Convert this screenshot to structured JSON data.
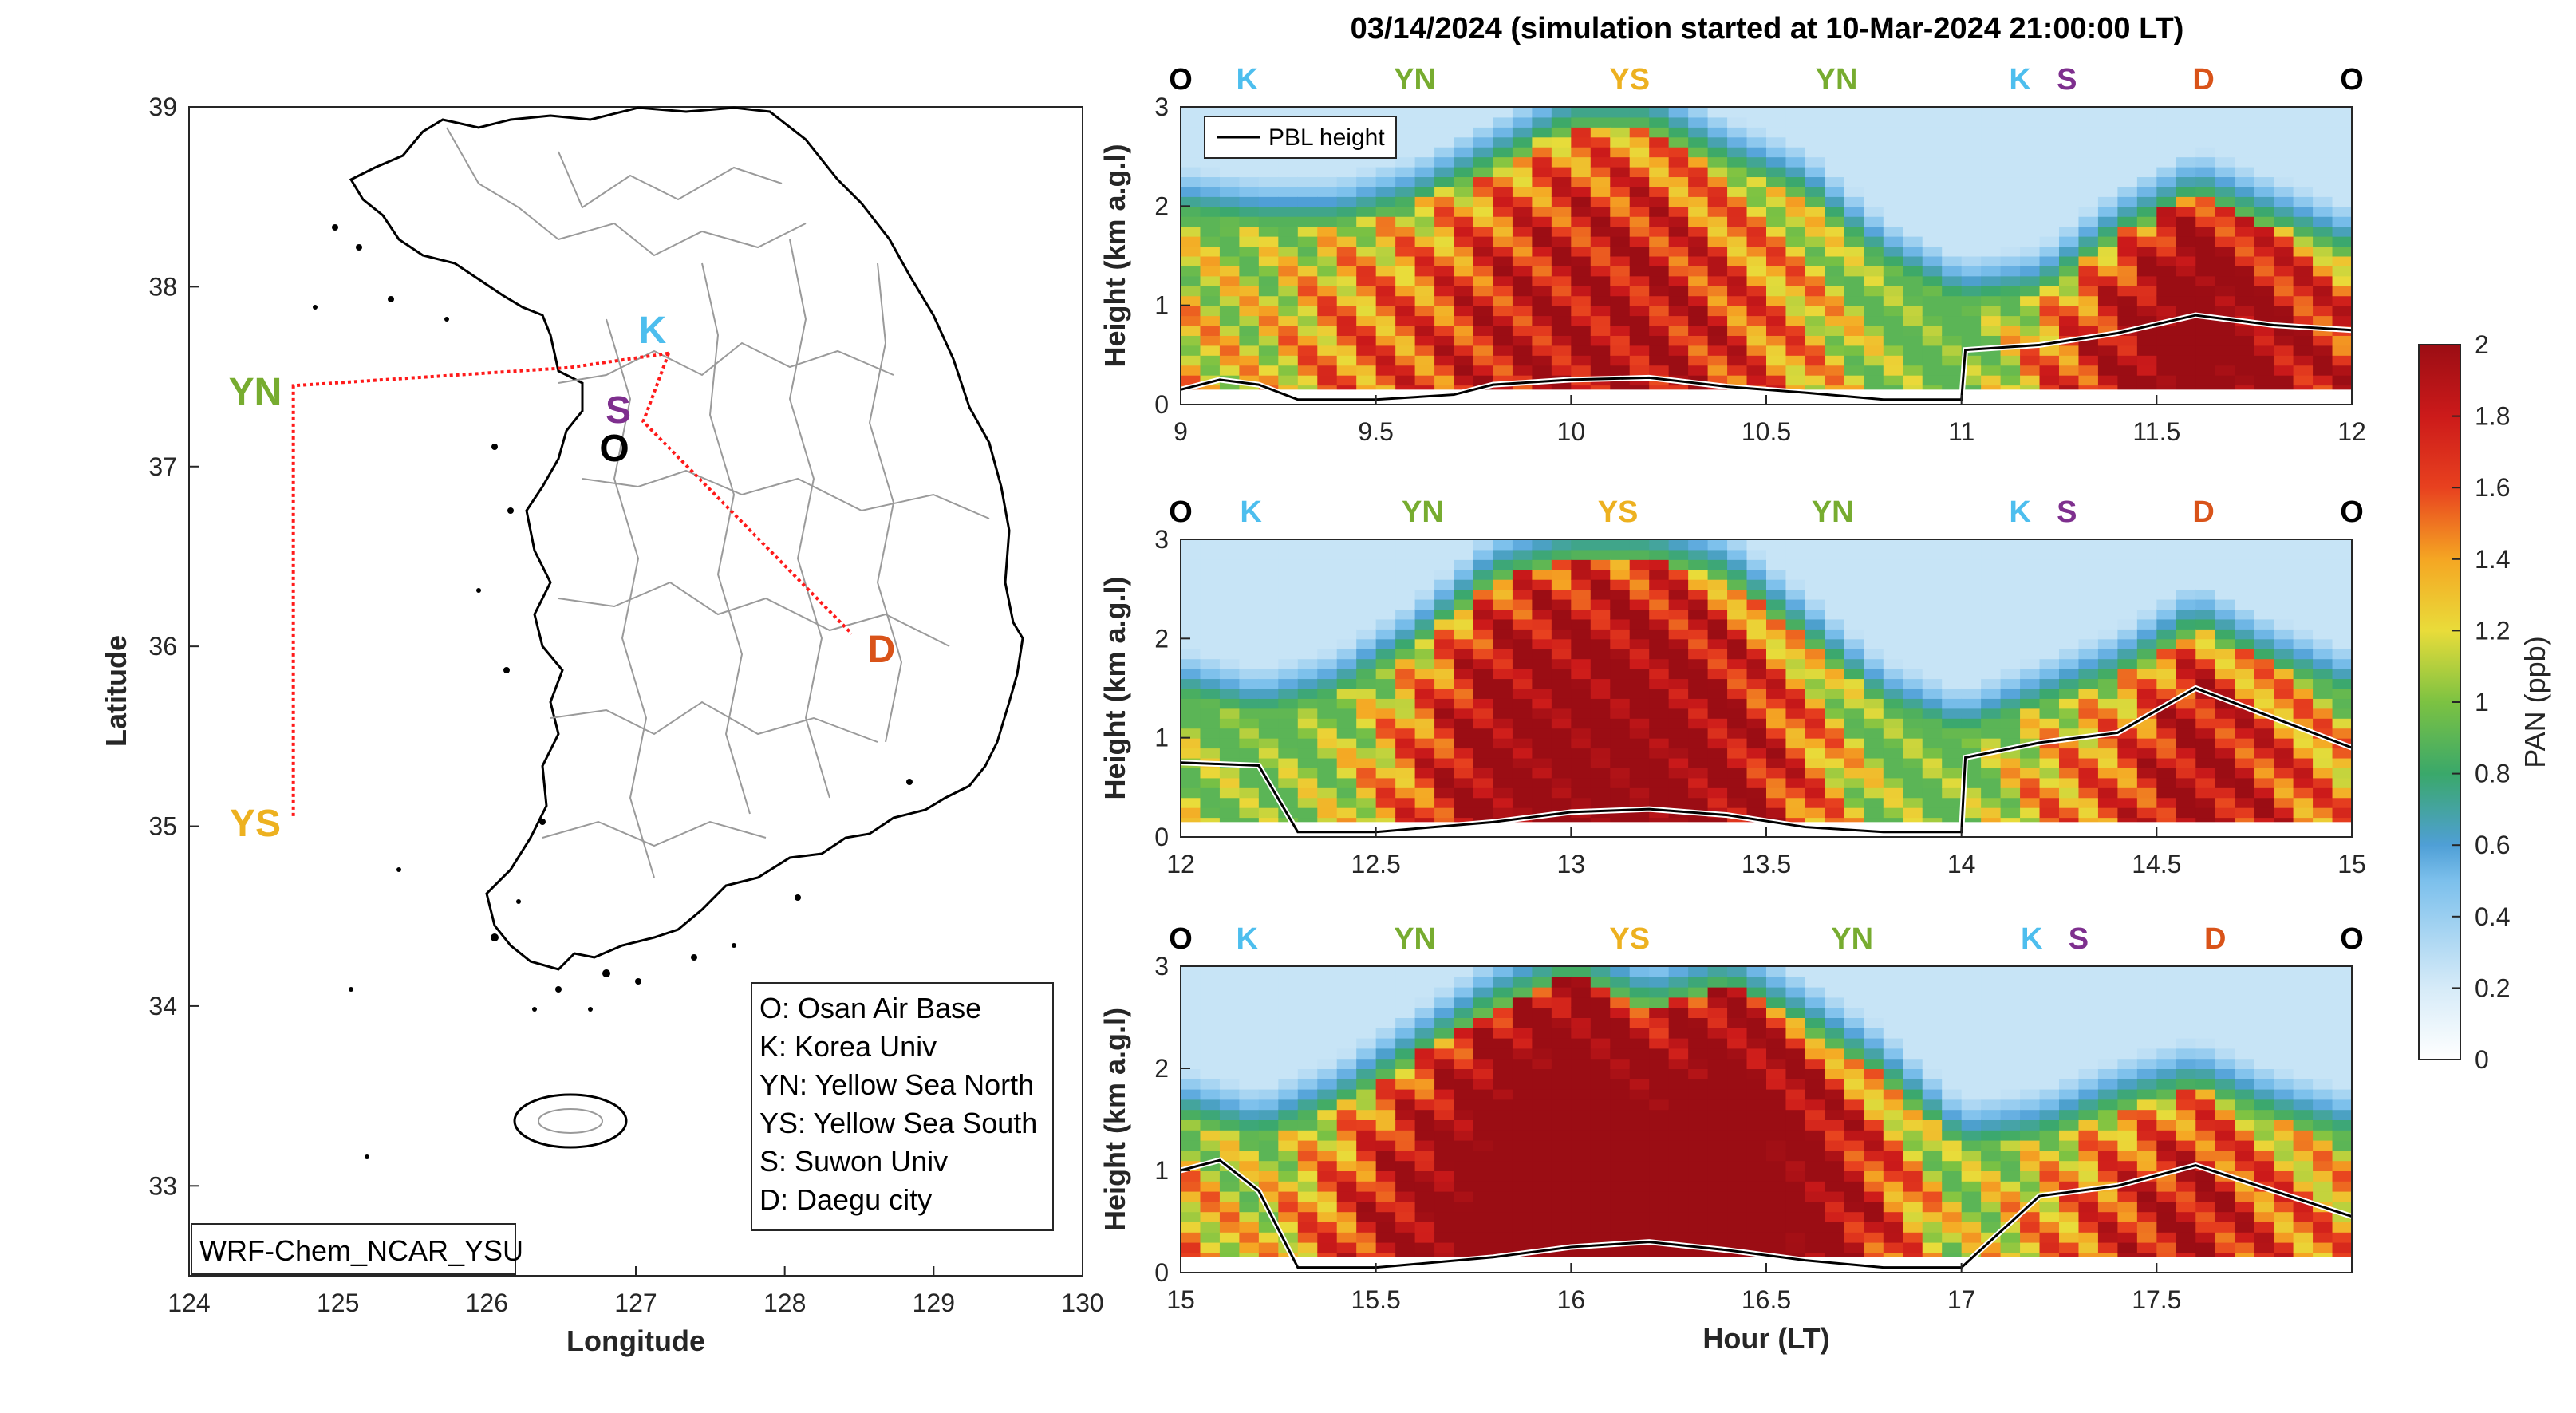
{
  "title": "03/14/2024 (simulation started at 10-Mar-2024 21:00:00 LT)",
  "colors": {
    "O": "#000000",
    "K": "#4DBEEE",
    "YN": "#77AC30",
    "YS": "#EDB120",
    "S": "#7E2F8E",
    "D": "#D95319"
  },
  "map": {
    "xlabel": "Longitude",
    "ylabel": "Latitude",
    "xticks": [
      "124",
      "125",
      "126",
      "127",
      "128",
      "129",
      "130"
    ],
    "yticks": [
      "33",
      "34",
      "35",
      "36",
      "37",
      "38",
      "39"
    ],
    "model_label": "WRF-Chem_NCAR_YSU",
    "legend": [
      "O: Osan Air Base",
      "K: Korea Univ",
      "YN: Yellow Sea North",
      "YS: Yellow Sea South",
      "S: Suwon Univ",
      "D: Daegu city"
    ],
    "sites": [
      {
        "code": "K",
        "lon": 127.15,
        "lat": 37.6
      },
      {
        "code": "S",
        "lon": 126.9,
        "lat": 37.3
      },
      {
        "code": "O",
        "lon": 126.85,
        "lat": 37.1
      },
      {
        "code": "YN",
        "lon": 124.3,
        "lat": 37.4
      },
      {
        "code": "YS",
        "lon": 124.3,
        "lat": 35.0
      },
      {
        "code": "D",
        "lon": 128.55,
        "lat": 35.95
      }
    ],
    "flight_track": [
      [
        127.22,
        37.63
      ],
      [
        126.55,
        37.55
      ],
      [
        124.7,
        37.45
      ],
      [
        124.7,
        35.05
      ]
    ],
    "flight_track2": [
      [
        127.22,
        37.63
      ],
      [
        127.05,
        37.25
      ],
      [
        128.45,
        36.07
      ]
    ]
  },
  "route_labels": [
    "O",
    "K",
    "YN",
    "YS",
    "YN",
    "K",
    "S",
    "D",
    "O"
  ],
  "colorbar": {
    "label": "PAN (ppb)",
    "ticks": [
      "0",
      "0.2",
      "0.4",
      "0.6",
      "0.8",
      "1",
      "1.2",
      "1.4",
      "1.6",
      "1.8",
      "2"
    ]
  },
  "chart_data": [
    {
      "type": "heatmap",
      "xlim": [
        9,
        12
      ],
      "ylim": [
        0,
        3
      ],
      "xticks": [
        "9",
        "9.5",
        "10",
        "10.5",
        "11",
        "11.5",
        "12"
      ],
      "yticks": [
        "0",
        "1",
        "2",
        "3"
      ],
      "ylabel": "Height (km a.g.l)",
      "xlabel": "",
      "legend": "PBL height",
      "route_positions": [
        9.0,
        9.17,
        9.6,
        10.15,
        10.68,
        11.15,
        11.27,
        11.62,
        12.0
      ],
      "pbl": {
        "x": [
          9.0,
          9.1,
          9.2,
          9.3,
          9.5,
          9.7,
          9.8,
          10.0,
          10.2,
          10.4,
          10.6,
          10.8,
          11.0,
          11.01,
          11.2,
          11.4,
          11.6,
          11.8,
          12.0
        ],
        "y": [
          0.15,
          0.25,
          0.2,
          0.05,
          0.05,
          0.1,
          0.2,
          0.25,
          0.27,
          0.18,
          0.12,
          0.05,
          0.05,
          0.55,
          0.6,
          0.72,
          0.9,
          0.8,
          0.75
        ]
      },
      "columns": [
        {
          "x": 9.0,
          "core": 0.9,
          "top": 1.9
        },
        {
          "x": 9.2,
          "core": 0.8,
          "top": 1.8
        },
        {
          "x": 9.4,
          "core": 1.1,
          "top": 1.8
        },
        {
          "x": 9.6,
          "core": 1.2,
          "top": 2.0
        },
        {
          "x": 9.8,
          "core": 1.4,
          "top": 2.4
        },
        {
          "x": 10.0,
          "core": 1.5,
          "top": 2.8
        },
        {
          "x": 10.2,
          "core": 1.5,
          "top": 2.8
        },
        {
          "x": 10.4,
          "core": 1.3,
          "top": 2.4
        },
        {
          "x": 10.6,
          "core": 1.0,
          "top": 2.1
        },
        {
          "x": 10.8,
          "core": 0.6,
          "top": 1.4
        },
        {
          "x": 11.0,
          "core": 0.4,
          "top": 1.0
        },
        {
          "x": 11.2,
          "core": 1.1,
          "top": 1.1
        },
        {
          "x": 11.4,
          "core": 1.5,
          "top": 1.7
        },
        {
          "x": 11.6,
          "core": 2.0,
          "top": 2.1
        },
        {
          "x": 11.8,
          "core": 1.6,
          "top": 1.8
        },
        {
          "x": 12.0,
          "core": 1.3,
          "top": 1.5
        }
      ]
    },
    {
      "type": "heatmap",
      "xlim": [
        12,
        15
      ],
      "ylim": [
        0,
        3
      ],
      "xticks": [
        "12",
        "12.5",
        "13",
        "13.5",
        "14",
        "14.5",
        "15"
      ],
      "yticks": [
        "0",
        "1",
        "2",
        "3"
      ],
      "ylabel": "Height (km a.g.l)",
      "xlabel": "",
      "route_positions": [
        12.0,
        12.18,
        12.62,
        13.12,
        13.67,
        14.15,
        14.27,
        14.62,
        15.0
      ],
      "pbl": {
        "x": [
          12.0,
          12.2,
          12.3,
          12.5,
          12.8,
          13.0,
          13.2,
          13.4,
          13.6,
          13.8,
          14.0,
          14.01,
          14.2,
          14.4,
          14.6,
          14.8,
          15.0
        ],
        "y": [
          0.75,
          0.72,
          0.05,
          0.05,
          0.15,
          0.25,
          0.28,
          0.22,
          0.1,
          0.05,
          0.05,
          0.8,
          0.95,
          1.05,
          1.5,
          1.2,
          0.9
        ]
      },
      "columns": [
        {
          "x": 12.0,
          "core": 0.7,
          "top": 1.4
        },
        {
          "x": 12.2,
          "core": 0.5,
          "top": 1.2
        },
        {
          "x": 12.4,
          "core": 0.7,
          "top": 1.4
        },
        {
          "x": 12.6,
          "core": 1.2,
          "top": 1.9
        },
        {
          "x": 12.8,
          "core": 1.7,
          "top": 2.6
        },
        {
          "x": 13.0,
          "core": 1.8,
          "top": 2.8
        },
        {
          "x": 13.2,
          "core": 1.8,
          "top": 2.8
        },
        {
          "x": 13.4,
          "core": 1.6,
          "top": 2.6
        },
        {
          "x": 13.6,
          "core": 1.2,
          "top": 2.0
        },
        {
          "x": 13.8,
          "core": 0.6,
          "top": 1.3
        },
        {
          "x": 14.0,
          "core": 0.5,
          "top": 1.0
        },
        {
          "x": 14.2,
          "core": 1.0,
          "top": 1.3
        },
        {
          "x": 14.4,
          "core": 1.2,
          "top": 1.6
        },
        {
          "x": 14.6,
          "core": 1.6,
          "top": 2.1
        },
        {
          "x": 14.8,
          "core": 1.3,
          "top": 1.7
        },
        {
          "x": 15.0,
          "core": 1.0,
          "top": 1.4
        }
      ]
    },
    {
      "type": "heatmap",
      "xlim": [
        15,
        18
      ],
      "ylim": [
        0,
        3
      ],
      "xticks": [
        "15",
        "15.5",
        "16",
        "16.5",
        "17",
        "17.5"
      ],
      "yticks": [
        "0",
        "1",
        "2",
        "3"
      ],
      "ylabel": "Height (km a.g.l)",
      "xlabel": "Hour (LT)",
      "route_positions": [
        15.0,
        15.17,
        15.6,
        16.15,
        16.72,
        17.18,
        17.3,
        17.65,
        18.0
      ],
      "pbl": {
        "x": [
          15.0,
          15.1,
          15.2,
          15.3,
          15.5,
          15.8,
          16.0,
          16.2,
          16.4,
          16.6,
          16.8,
          17.0,
          17.2,
          17.4,
          17.6,
          17.8,
          18.0
        ],
        "y": [
          1.0,
          1.1,
          0.8,
          0.05,
          0.05,
          0.15,
          0.25,
          0.3,
          0.22,
          0.12,
          0.05,
          0.05,
          0.75,
          0.85,
          1.05,
          0.8,
          0.55
        ]
      },
      "columns": [
        {
          "x": 15.0,
          "core": 1.0,
          "top": 1.5
        },
        {
          "x": 15.2,
          "core": 0.8,
          "top": 1.3
        },
        {
          "x": 15.4,
          "core": 1.2,
          "top": 1.6
        },
        {
          "x": 15.6,
          "core": 1.6,
          "top": 2.1
        },
        {
          "x": 15.8,
          "core": 2.0,
          "top": 2.6
        },
        {
          "x": 16.0,
          "core": 2.2,
          "top": 2.9
        },
        {
          "x": 16.2,
          "core": 2.0,
          "top": 2.6
        },
        {
          "x": 16.4,
          "core": 2.1,
          "top": 2.8
        },
        {
          "x": 16.6,
          "core": 1.8,
          "top": 2.4
        },
        {
          "x": 16.8,
          "core": 1.3,
          "top": 1.9
        },
        {
          "x": 17.0,
          "core": 0.7,
          "top": 1.2
        },
        {
          "x": 17.2,
          "core": 1.0,
          "top": 1.3
        },
        {
          "x": 17.4,
          "core": 1.3,
          "top": 1.6
        },
        {
          "x": 17.6,
          "core": 1.5,
          "top": 1.8
        },
        {
          "x": 17.8,
          "core": 1.2,
          "top": 1.5
        },
        {
          "x": 18.0,
          "core": 1.0,
          "top": 1.3
        }
      ]
    }
  ]
}
